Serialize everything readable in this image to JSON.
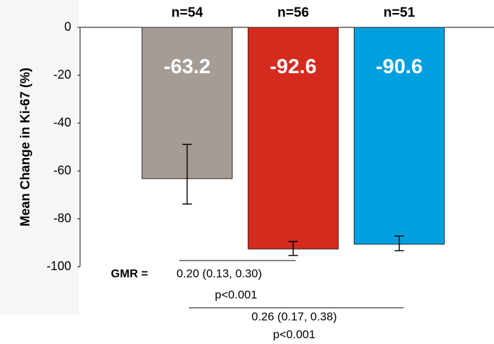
{
  "chart_data": {
    "type": "bar",
    "y_label": "Mean Change in Ki-67 (%)",
    "categories": [
      "n=54",
      "n=56",
      "n=51"
    ],
    "values": [
      -63.2,
      -92.6,
      -90.6
    ],
    "colors": [
      "#a59d95",
      "#d52b1e",
      "#00a0e0"
    ],
    "error_minus": [
      10.6,
      2.7,
      2.7
    ],
    "error_plus": [
      14.3,
      3.1,
      3.4
    ],
    "ylim": [
      -100,
      0
    ],
    "yticks": [
      0,
      -20,
      -40,
      -60,
      -80,
      -100
    ],
    "annotations": {
      "gmr_label": "GMR =",
      "comparisons": [
        {
          "text": "0.20 (0.13, 0.30)",
          "p": "p<0.001"
        },
        {
          "text": "0.26 (0.17, 0.38)",
          "p": "p<0.001"
        }
      ]
    }
  }
}
